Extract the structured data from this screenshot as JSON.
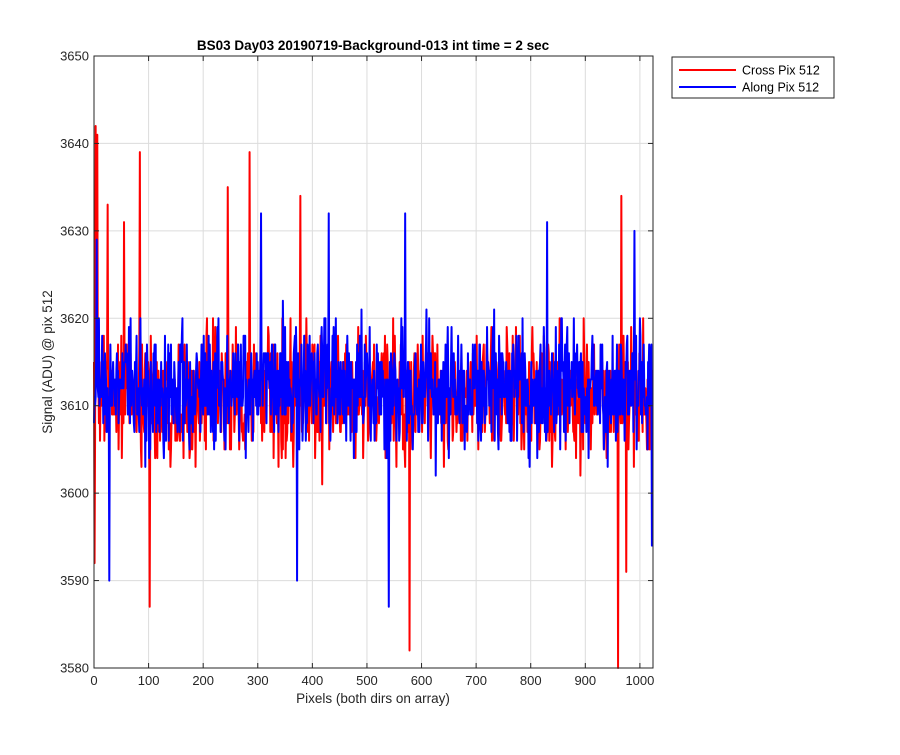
{
  "chart_data": {
    "type": "line",
    "title": "BS03 Day03 20190719-Background-013 int time = 2 sec",
    "xlabel": "Pixels (both dirs on array)",
    "ylabel": "Signal (ADU) @ pix 512",
    "xlim": [
      0,
      1024
    ],
    "ylim": [
      3580,
      3650
    ],
    "xticks": [
      0,
      100,
      200,
      300,
      400,
      500,
      600,
      700,
      800,
      900,
      1000
    ],
    "yticks": [
      3580,
      3590,
      3600,
      3610,
      3620,
      3630,
      3640,
      3650
    ],
    "grid": true,
    "legend_position": "outside-top-right",
    "noise_model": "random fluctuation about the mean, one sample per pixel",
    "series": [
      {
        "name": "Cross Pix 512",
        "color": "#ff0000",
        "mean": 3611,
        "min": 3580,
        "max": 3642,
        "n_points": 1024,
        "notable_points": [
          {
            "x": 1,
            "y": 3592
          },
          {
            "x": 3,
            "y": 3642
          },
          {
            "x": 6,
            "y": 3641
          },
          {
            "x": 25,
            "y": 3633
          },
          {
            "x": 55,
            "y": 3631
          },
          {
            "x": 84,
            "y": 3639
          },
          {
            "x": 102,
            "y": 3587
          },
          {
            "x": 285,
            "y": 3639
          },
          {
            "x": 245,
            "y": 3635
          },
          {
            "x": 378,
            "y": 3634
          },
          {
            "x": 578,
            "y": 3582
          },
          {
            "x": 960,
            "y": 3580
          },
          {
            "x": 966,
            "y": 3634
          },
          {
            "x": 975,
            "y": 3591
          }
        ]
      },
      {
        "name": "Along Pix 512",
        "color": "#0000ff",
        "mean": 3612,
        "min": 3587,
        "max": 3632,
        "n_points": 1024,
        "notable_points": [
          {
            "x": 5,
            "y": 3629
          },
          {
            "x": 28,
            "y": 3590
          },
          {
            "x": 306,
            "y": 3632
          },
          {
            "x": 372,
            "y": 3590
          },
          {
            "x": 430,
            "y": 3632
          },
          {
            "x": 540,
            "y": 3587
          },
          {
            "x": 570,
            "y": 3632
          },
          {
            "x": 830,
            "y": 3631
          },
          {
            "x": 990,
            "y": 3630
          },
          {
            "x": 1022,
            "y": 3594
          }
        ]
      }
    ]
  }
}
